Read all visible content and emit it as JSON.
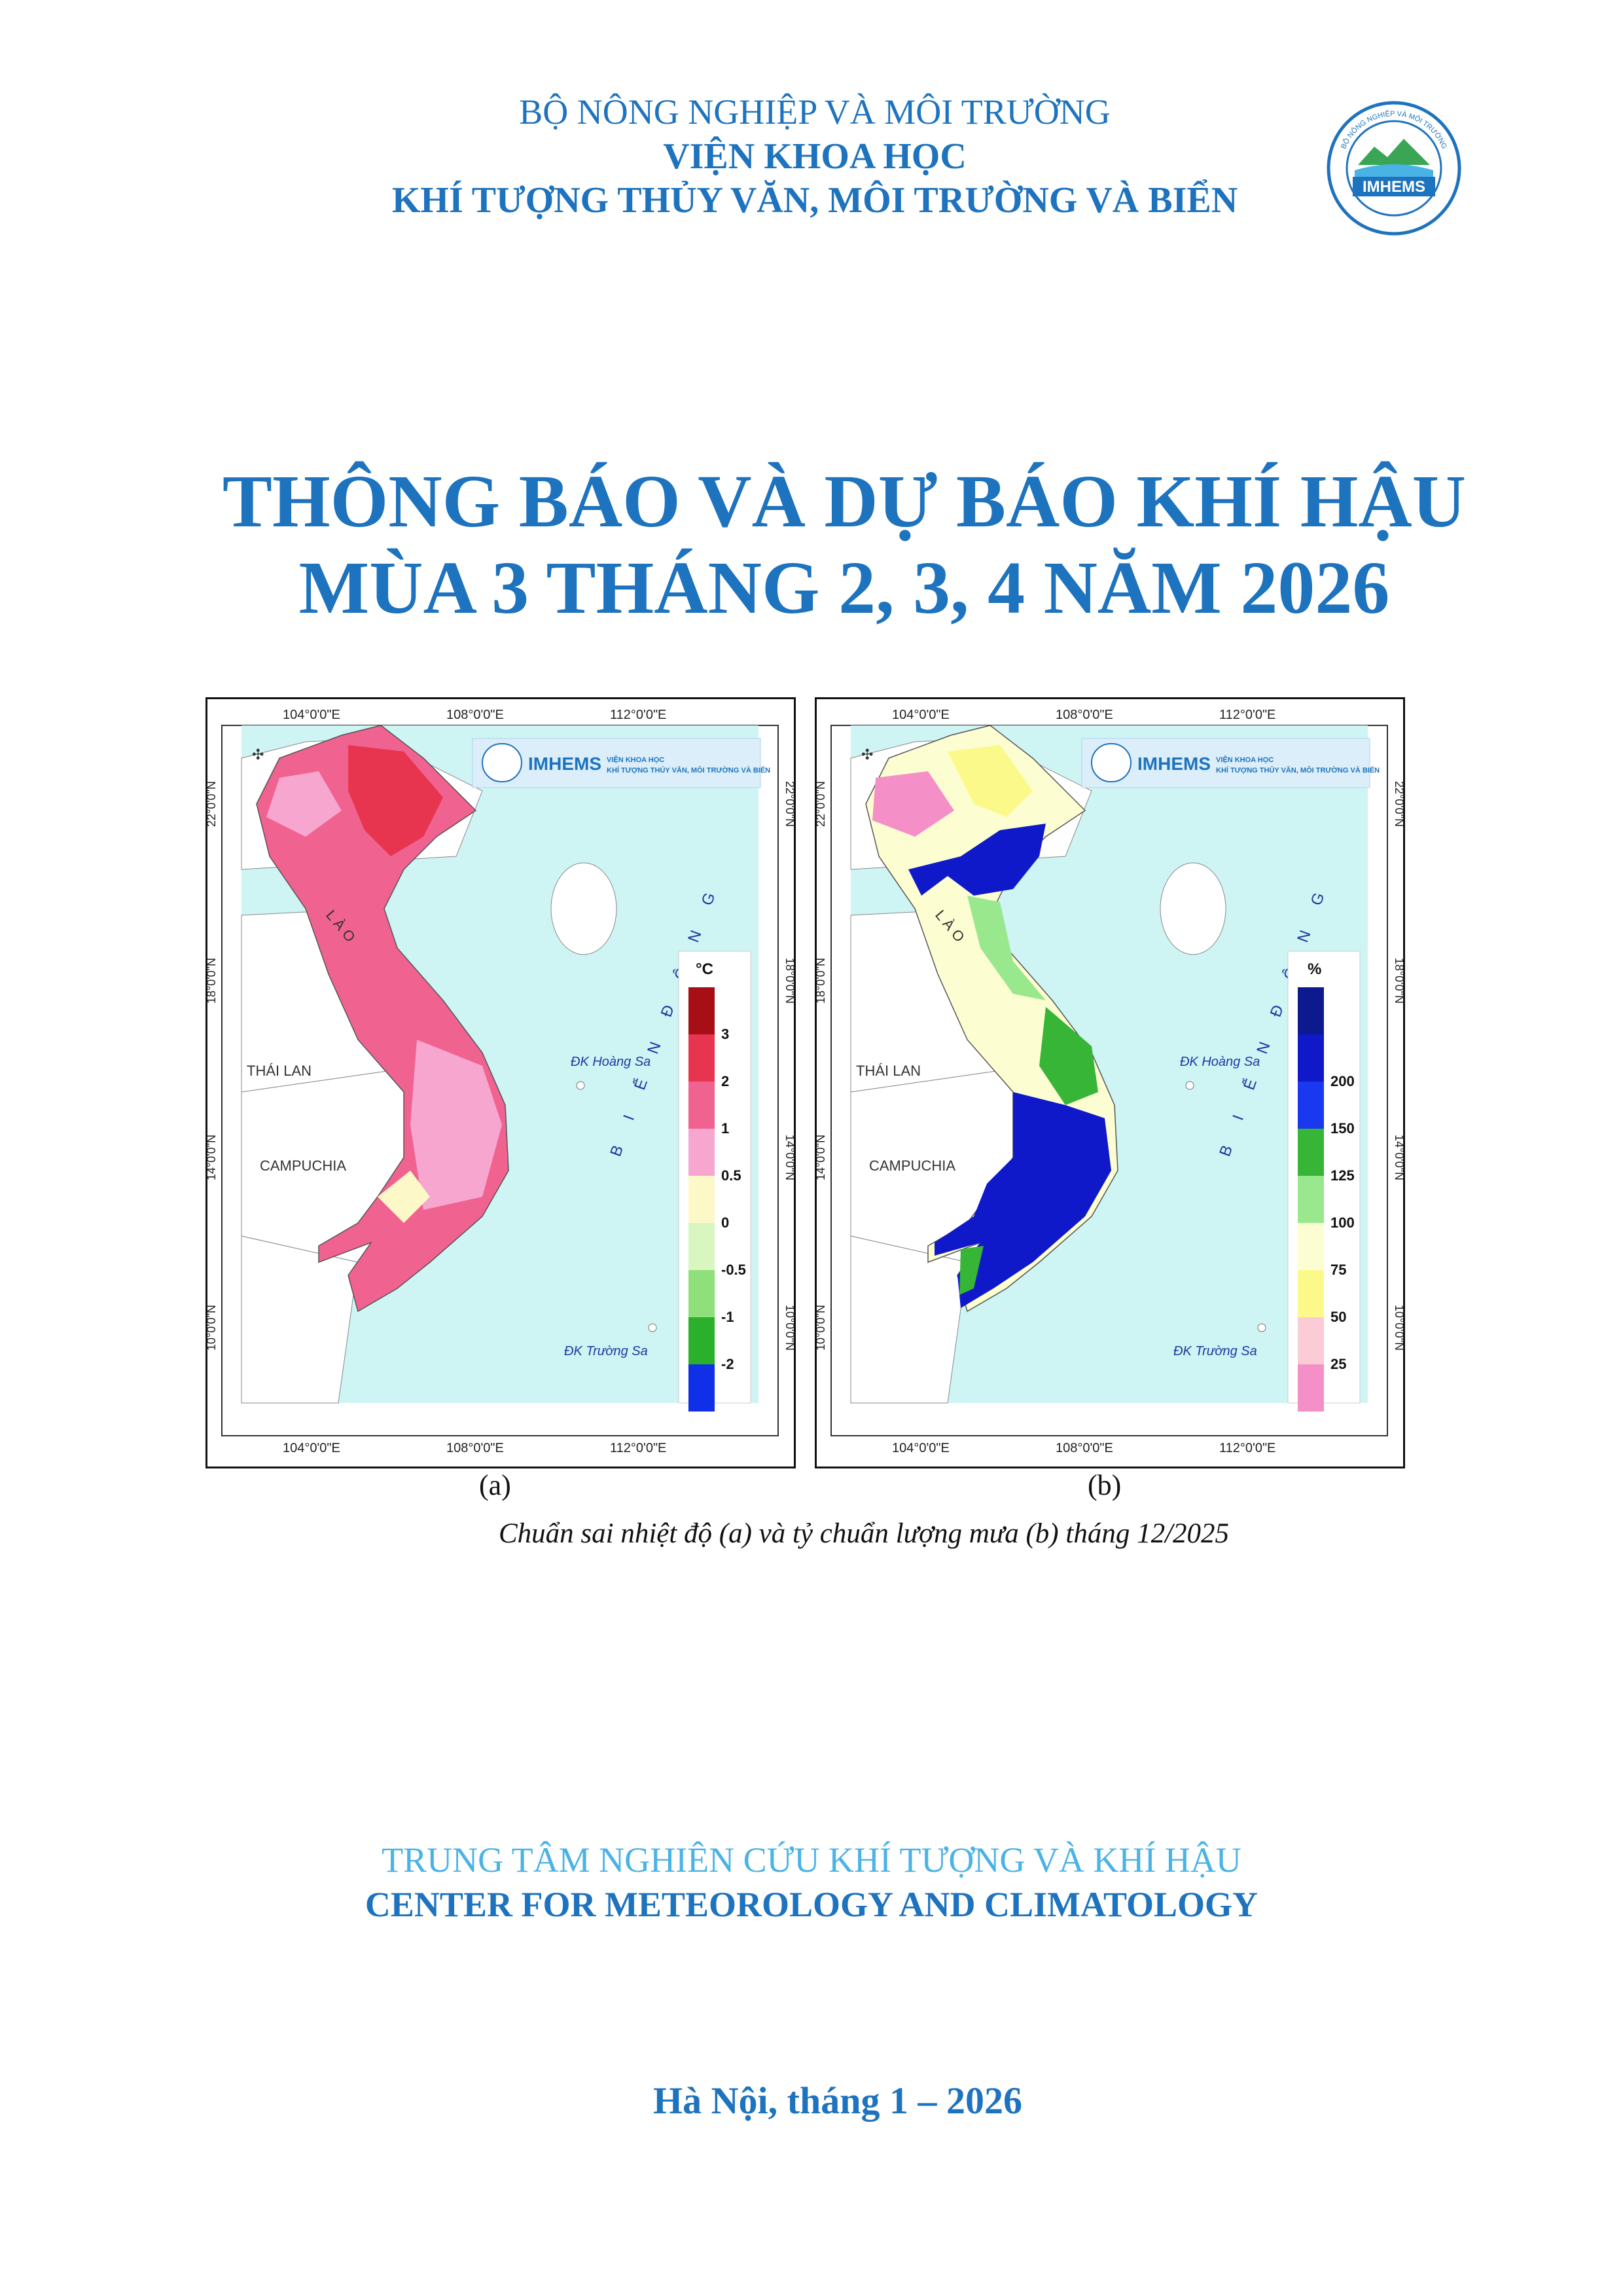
{
  "header": {
    "ministry": "BỘ NÔNG NGHIỆP VÀ MÔI TRƯỜNG",
    "institute_line1": "VIỆN KHOA HỌC",
    "institute_line2": "KHÍ TƯỢNG THỦY VĂN, MÔI TRƯỜNG VÀ BIỂN",
    "logo_text": "IMHEMS"
  },
  "title": {
    "line1": "THÔNG BÁO VÀ DỰ BÁO KHÍ HẬU",
    "line2": "MÙA 3 THÁNG 2, 3, 4 NĂM 2026"
  },
  "maps": {
    "top_lon_labels": [
      "104°0'0\"E",
      "108°0'0\"E",
      "112°0'0\"E"
    ],
    "lat_labels": [
      "22°0'0\"N",
      "18°0'0\"N",
      "14°0'0\"N",
      "10°0'0\"N"
    ],
    "banner_name": "IMHEMS",
    "banner_sub1": "VIỆN KHOA HỌC",
    "banner_sub2": "KHÍ TƯỢNG THỦY VĂN, MÔI TRƯỜNG VÀ BIỂN",
    "place_lao": "L À O",
    "place_thai": "THÁI LAN",
    "place_camp": "CAMPUCHIA",
    "place_sea": "B I Ể N   Đ Ô N G",
    "place_hoangsa": "ĐK Hoàng Sa",
    "place_truongsa": "ĐK Trường Sa",
    "map_a": {
      "caption": "(a)",
      "unit": "°C",
      "legend": [
        {
          "label": "3",
          "color": "#a50f15"
        },
        {
          "label": "2",
          "color": "#e8354f"
        },
        {
          "label": "1",
          "color": "#f0628f"
        },
        {
          "label": "0.5",
          "color": "#f7a6cf"
        },
        {
          "label": "0",
          "color": "#fcf8c8"
        },
        {
          "label": "-0.5",
          "color": "#d9f5c0"
        },
        {
          "label": "-1",
          "color": "#8fe07a"
        },
        {
          "label": "-2",
          "color": "#2bb02b"
        },
        {
          "label": "",
          "color": "#1030e8"
        }
      ]
    },
    "map_b": {
      "caption": "(b)",
      "unit": "%",
      "legend": [
        {
          "label": "",
          "color": "#0d1a8f"
        },
        {
          "label": "200",
          "color": "#1019c9"
        },
        {
          "label": "150",
          "color": "#1a38f0"
        },
        {
          "label": "125",
          "color": "#36b536"
        },
        {
          "label": "100",
          "color": "#9ae88e"
        },
        {
          "label": "75",
          "color": "#fdfdd2"
        },
        {
          "label": "50",
          "color": "#fbf98a"
        },
        {
          "label": "25",
          "color": "#fbcbd6"
        },
        {
          "label": "",
          "color": "#f58fc8"
        }
      ]
    },
    "figure_caption": "Chuẩn sai nhiệt độ (a) và tỷ chuẩn lượng mưa (b) tháng 12/2025"
  },
  "footer": {
    "center_vi": "TRUNG TÂM NGHIÊN CỨU KHÍ TƯỢNG VÀ KHÍ HẬU",
    "center_en": "CENTER FOR METEOROLOGY AND CLIMATOLOGY",
    "place_date": "Hà Nội, tháng 1 – 2026"
  }
}
